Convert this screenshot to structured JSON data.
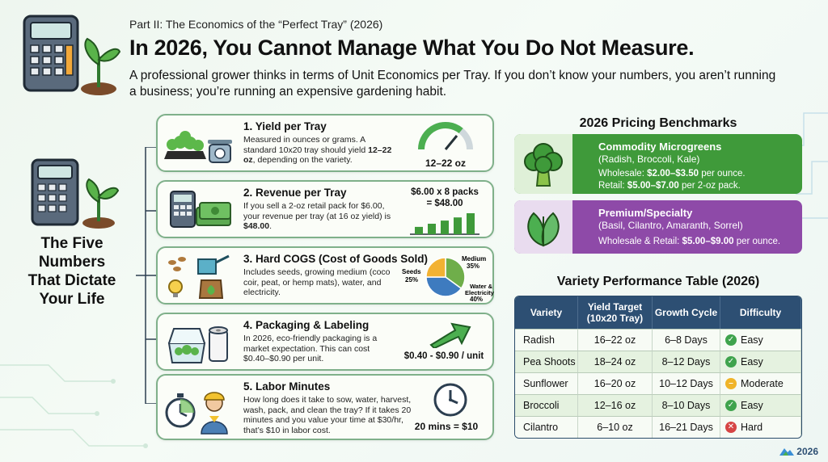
{
  "header": {
    "subtitle": "Part II: The Economics of the “Perfect Tray” (2026)",
    "title": "In 2026, You Cannot Manage What You Do Not Measure.",
    "intro": "A professional grower thinks in terms of Unit Economics per Tray. If you don’t know your numbers, you aren’t running a business; you’re running an expensive gardening habit."
  },
  "side": {
    "title_lines": [
      "The Five",
      "Numbers",
      "That Dictate",
      "Your Life"
    ]
  },
  "cards": [
    {
      "title": "1. Yield per Tray",
      "desc_pre": "Measured in ounces or grams. A standard 10x20 tray should yield ",
      "desc_bold": "12–22 oz",
      "desc_post": ", depending on the variety.",
      "metric": "12–22 oz",
      "gauge_fraction": 0.72
    },
    {
      "title": "2. Revenue per Tray",
      "desc_pre": "If you sell a 2-oz retail pack for $6.00, your revenue per tray (at 16 oz yield) is ",
      "desc_bold": "$48.00",
      "desc_post": ".",
      "metric_line1": "$6.00 x 8 packs",
      "metric_line2": "= $48.00",
      "bars": [
        0.35,
        0.5,
        0.65,
        0.8,
        1.0
      ]
    },
    {
      "title": "3. Hard COGS (Cost of Goods Sold)",
      "desc_pre": "Includes seeds, growing medium (coco coir, peat, or hemp mats), water, and electricity.",
      "desc_bold": "",
      "desc_post": "",
      "pie": [
        {
          "label": "Seeds",
          "pct_label": "25%",
          "value": 25,
          "color": "#f2b233"
        },
        {
          "label": "Medium",
          "pct_label": "35%",
          "value": 35,
          "color": "#6fae4a"
        },
        {
          "label": "Water & Electricity",
          "pct_label": "40%",
          "value": 40,
          "color": "#3e7bbf"
        }
      ]
    },
    {
      "title": "4. Packaging & Labeling",
      "desc_pre": "In 2026, eco-friendly packaging is a market expectation. This can cost $0.40–$0.90 per unit.",
      "desc_bold": "",
      "desc_post": "",
      "metric": "$0.40 - $0.90 / unit"
    },
    {
      "title": "5. Labor Minutes",
      "desc_pre": "How long does it take to sow, water, harvest, wash, pack, and clean the tray? If it takes 20 minutes and you value your time at $30/hr, that’s $10 in labor cost.",
      "desc_bold": "",
      "desc_post": "",
      "metric": "20 mins = $10"
    }
  ],
  "pricing": {
    "heading": "2026 Pricing Benchmarks",
    "commodity": {
      "title": "Commodity Microgreens",
      "subtitle": "(Radish, Broccoli, Kale)",
      "line1_pre": "Wholesale: ",
      "line1_bold": "$2.00–$3.50",
      "line1_post": " per ounce.",
      "line2_pre": "Retail: ",
      "line2_bold": "$5.00–$7.00",
      "line2_post": " per 2-oz pack.",
      "color": "#3f9a3a"
    },
    "premium": {
      "title": "Premium/Specialty",
      "subtitle": "(Basil, Cilantro, Amaranth, Sorrel)",
      "line1_pre": "Wholesale & Retail: ",
      "line1_bold": "$5.00–$9.00",
      "line1_post": " per ounce.",
      "color": "#8e4aa8"
    }
  },
  "table": {
    "heading": "Variety Performance Table (2026)",
    "headers": [
      "Variety",
      "Yield Target (10x20 Tray)",
      "Growth Cycle",
      "Difficulty"
    ],
    "rows": [
      {
        "variety": "Radish",
        "yield": "16–22 oz",
        "cycle": "6–8 Days",
        "difficulty": "Easy",
        "level": "easy"
      },
      {
        "variety": "Pea Shoots",
        "yield": "18–24 oz",
        "cycle": "8–12 Days",
        "difficulty": "Easy",
        "level": "easy"
      },
      {
        "variety": "Sunflower",
        "yield": "16–20 oz",
        "cycle": "10–12 Days",
        "difficulty": "Moderate",
        "level": "moderate"
      },
      {
        "variety": "Broccoli",
        "yield": "12–16 oz",
        "cycle": "8–10 Days",
        "difficulty": "Easy",
        "level": "easy"
      },
      {
        "variety": "Cilantro",
        "yield": "6–10 oz",
        "cycle": "16–21 Days",
        "difficulty": "Hard",
        "level": "hard"
      }
    ],
    "level_colors": {
      "easy": "#3fa34d",
      "moderate": "#f0b429",
      "hard": "#d64545"
    }
  },
  "footer": {
    "logo_text": "2026",
    "logo_icon": "mountain-logo-icon"
  }
}
